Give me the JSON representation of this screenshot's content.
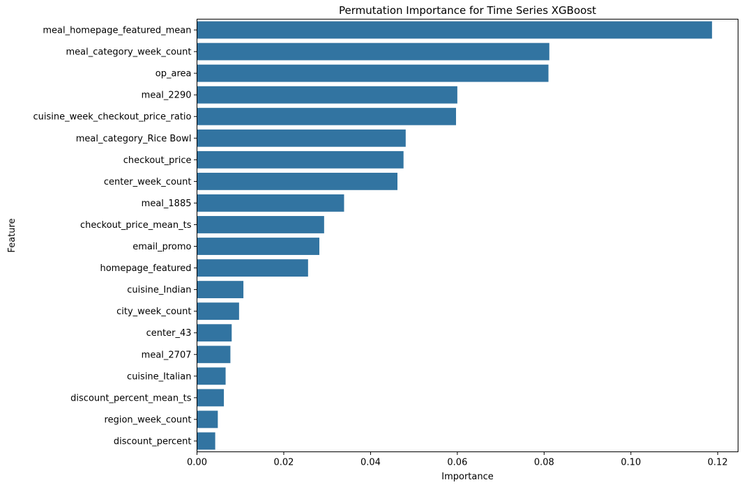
{
  "chart_data": {
    "type": "bar",
    "orientation": "horizontal",
    "title": "Permutation Importance for Time Series XGBoost",
    "xlabel": "Importance",
    "ylabel": "Feature",
    "bar_color": "#3274a1",
    "xlim": [
      0,
      0.1247
    ],
    "xticks": [
      0.0,
      0.02,
      0.04,
      0.06,
      0.08,
      0.1,
      0.12
    ],
    "xtick_labels": [
      "0.00",
      "0.02",
      "0.04",
      "0.06",
      "0.08",
      "0.10",
      "0.12"
    ],
    "grid": false,
    "categories": [
      "meal_homepage_featured_mean",
      "meal_category_week_count",
      "op_area",
      "meal_2290",
      "cuisine_week_checkout_price_ratio",
      "meal_category_Rice Bowl",
      "checkout_price",
      "center_week_count",
      "meal_1885",
      "checkout_price_mean_ts",
      "email_promo",
      "homepage_featured",
      "cuisine_Indian",
      "city_week_count",
      "center_43",
      "meal_2707",
      "cuisine_Italian",
      "discount_percent_mean_ts",
      "region_week_count",
      "discount_percent"
    ],
    "values": [
      0.1187,
      0.0812,
      0.081,
      0.06,
      0.0597,
      0.0481,
      0.0476,
      0.0462,
      0.0339,
      0.0293,
      0.0282,
      0.0256,
      0.0107,
      0.0097,
      0.008,
      0.0077,
      0.0066,
      0.0062,
      0.0048,
      0.0042
    ]
  }
}
